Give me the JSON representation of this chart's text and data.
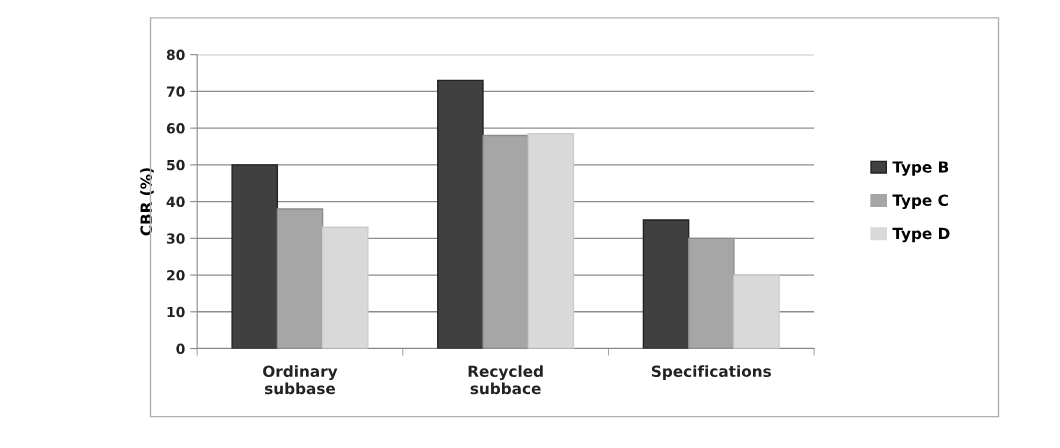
{
  "chart_data": {
    "type": "bar",
    "ylabel": "CBR (%)",
    "categories": [
      "Ordinary\nsubbase",
      "Recycled\nsubbace",
      "Specifications"
    ],
    "series": [
      {
        "name": "Type B",
        "color": "#404040",
        "values": [
          50,
          73,
          35
        ]
      },
      {
        "name": "Type C",
        "color": "#a6a6a6",
        "values": [
          38,
          58,
          30
        ]
      },
      {
        "name": "Type D",
        "color": "#d9d9d9",
        "values": [
          33,
          58.5,
          20
        ]
      }
    ],
    "ylim": [
      0,
      80
    ],
    "yticks": [
      0,
      10,
      20,
      30,
      40,
      50,
      60,
      70,
      80
    ],
    "grid": "y",
    "legend": "right"
  }
}
